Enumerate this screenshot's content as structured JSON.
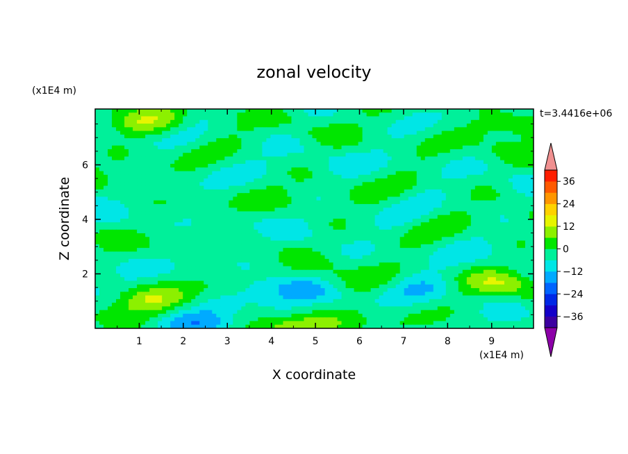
{
  "chart_data": {
    "type": "heatmap",
    "title": "zonal velocity",
    "xlabel": "X coordinate",
    "ylabel": "Z coordinate",
    "x_unit": "(x1E4 m)",
    "y_unit": "(x1E4 m)",
    "time_label": "t=3.4416e+06",
    "xlim": [
      0,
      9.95
    ],
    "ylim": [
      0,
      8.05
    ],
    "x_ticks": [
      "1",
      "2",
      "3",
      "4",
      "5",
      "6",
      "7",
      "8",
      "9"
    ],
    "y_ticks": [
      "2",
      "4",
      "6"
    ],
    "colorbar_ticks": [
      "36",
      "24",
      "12",
      "0",
      "-12",
      "-24",
      "-36"
    ],
    "colorbar_levels": [
      -42,
      -36,
      -30,
      -24,
      -18,
      -12,
      -6,
      0,
      6,
      12,
      18,
      24,
      30,
      36,
      42
    ],
    "colorbar_colors": [
      "#8c00a8",
      "#3c00a0",
      "#1400c8",
      "#0028e6",
      "#0064ff",
      "#00aaff",
      "#00e6e6",
      "#00f09a",
      "#00e600",
      "#8cf000",
      "#e6f500",
      "#ffd200",
      "#ff9600",
      "#ff5a00",
      "#ff1e00",
      "#f09090"
    ],
    "grid": false,
    "features": [
      {
        "x": 1.2,
        "z": 1.0,
        "value": 12
      },
      {
        "x": 4.3,
        "z": 1.4,
        "value": -12
      },
      {
        "x": 6.0,
        "z": 1.6,
        "value": 6
      },
      {
        "x": 7.4,
        "z": 1.5,
        "value": -8
      },
      {
        "x": 9.2,
        "z": 1.6,
        "value": 10
      },
      {
        "x": 4.6,
        "z": 0.1,
        "value": 14
      },
      {
        "x": 1.1,
        "z": 7.5,
        "value": 12
      },
      {
        "x": 9.3,
        "z": 7.5,
        "value": 10
      },
      {
        "x": 2.5,
        "z": 0.05,
        "value": -14
      }
    ]
  }
}
